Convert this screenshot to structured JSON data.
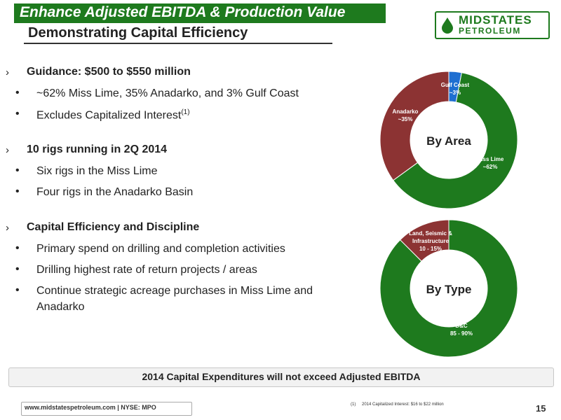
{
  "header": {
    "title": "Enhance Adjusted EBITDA & Production Value",
    "subtitle": "Demonstrating Capital Efficiency"
  },
  "logo": {
    "line1": "MIDSTATES",
    "line2": "PETROLEUM"
  },
  "sections": [
    {
      "heading": "Guidance: $500 to $550 million",
      "bullets": [
        "~62% Miss Lime, 35% Anadarko, and 3% Gulf Coast",
        "Excludes Capitalized Interest"
      ],
      "footnote_ref": "(1)"
    },
    {
      "heading": "10 rigs running in 2Q 2014",
      "bullets": [
        "Six rigs in the Miss Lime",
        "Four rigs in the Anadarko Basin"
      ]
    },
    {
      "heading": "Capital Efficiency and Discipline",
      "bullets": [
        "Primary spend on drilling and completion activities",
        "Drilling highest rate of return projects / areas",
        "Continue strategic acreage purchases in Miss Lime and",
        "Anadarko"
      ]
    }
  ],
  "chart_data": [
    {
      "type": "pie",
      "title": "By Area",
      "slices": [
        {
          "label": "Gulf Coast",
          "value_label": "~3%",
          "value": 3,
          "color": "#1f6fd1"
        },
        {
          "label": "Miss Lime",
          "value_label": "~62%",
          "value": 62,
          "color": "#1e7a1e"
        },
        {
          "label": "Anadarko",
          "value_label": "~35%",
          "value": 35,
          "color": "#8c3333"
        }
      ]
    },
    {
      "type": "pie",
      "title": "By Type",
      "slices": [
        {
          "label": "D&C",
          "value_label": "85 - 90%",
          "value": 87.5,
          "color": "#1e7a1e"
        },
        {
          "label": "Land, Seismic &",
          "label2": "Infrastructure",
          "value_label": "10 - 15%",
          "value": 12.5,
          "color": "#8c3333"
        }
      ]
    }
  ],
  "banner": "2014 Capital Expenditures will not exceed Adjusted EBITDA",
  "footer": {
    "url": "www.midstatespetroleum.com | NYSE: MPO",
    "footnote_marker": "(1)",
    "footnote_text": "2014 Capitalized Interest: $16 to $22 million",
    "page": "15"
  },
  "colors": {
    "green": "#1e7a1e",
    "red": "#8c3333",
    "blue": "#1f6fd1"
  }
}
